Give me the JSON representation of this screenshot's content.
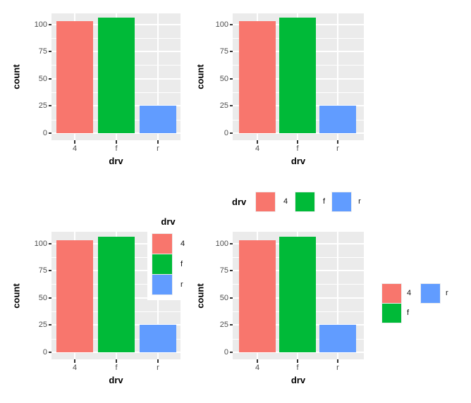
{
  "figure_description": "Four identical ggplot2 bar charts arranged in a 2x2 grid, differing only in legend placement",
  "chart_data": {
    "type": "bar",
    "title": "",
    "categories": [
      "4",
      "f",
      "r"
    ],
    "values": [
      103,
      106,
      25
    ],
    "bar_colors": [
      "#F8766D",
      "#00BA38",
      "#619CFF"
    ],
    "xlabel": "drv",
    "ylabel": "count",
    "yticks": [
      "0",
      "25",
      "50",
      "75",
      "100"
    ],
    "ytick_values": [
      0,
      25,
      50,
      75,
      100
    ],
    "ylim": [
      0,
      109
    ],
    "grid": {
      "major_horizontal": true,
      "minor_horizontal": true,
      "major_vertical_at_categories": true,
      "grid_color": "#FFFFFF",
      "panel_background": "#EBEBEB"
    },
    "legend_title": "drv",
    "legend_entries": [
      "4",
      "f",
      "r"
    ],
    "panels": [
      {
        "name": "top-left",
        "legend": "none"
      },
      {
        "name": "top-right",
        "legend": "none"
      },
      {
        "name": "bottom-left",
        "legend": "inset vertical legend with title, top-right corner inside panel, white background"
      },
      {
        "name": "bottom-right",
        "legend": "horizontal titled legend above plot plus untitled two-column legend at right (col 1: 4, f; col 2: r)"
      }
    ]
  },
  "theme": {
    "panel_bg": "#EBEBEB",
    "grid_color": "#FFFFFF",
    "tick_label_color": "#4D4D4D",
    "axis_title_color": "#000000",
    "tick_mark_color": "#333333",
    "legend_text_color": "#111111",
    "background": "#FFFFFF"
  }
}
